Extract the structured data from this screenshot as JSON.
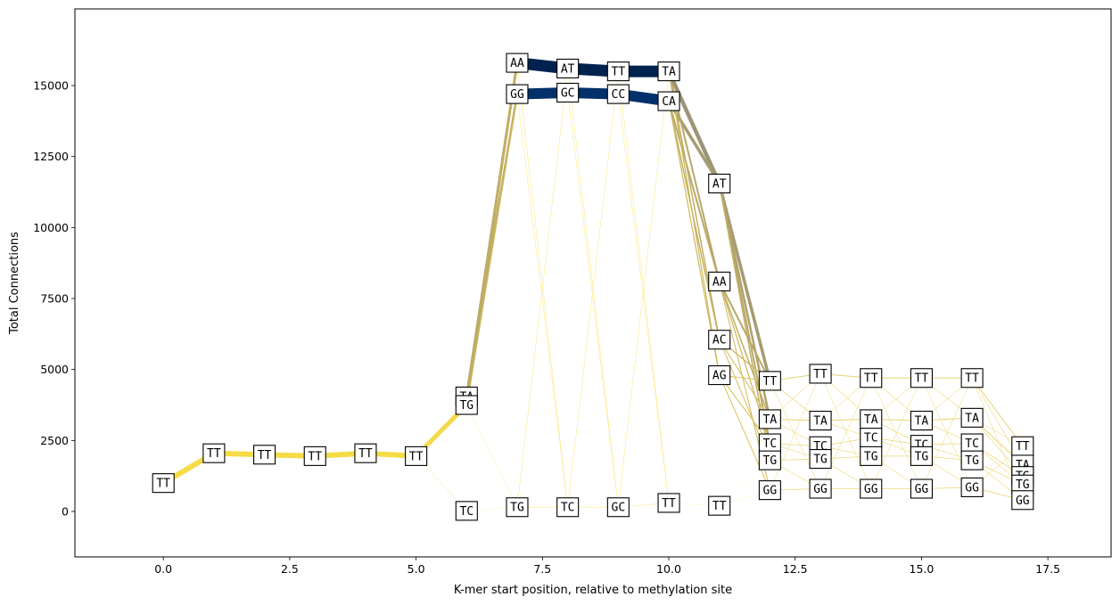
{
  "chart_data": {
    "type": "network-line",
    "xlabel": "K-mer start position, relative to methylation site",
    "ylabel": "Total Connections",
    "xlim": [
      -1.75,
      18.75
    ],
    "ylim": [
      -1600,
      17700
    ],
    "xticks": [
      {
        "value": 0.0,
        "label": "0.0"
      },
      {
        "value": 2.5,
        "label": "2.5"
      },
      {
        "value": 5.0,
        "label": "5.0"
      },
      {
        "value": 7.5,
        "label": "7.5"
      },
      {
        "value": 10.0,
        "label": "10.0"
      },
      {
        "value": 12.5,
        "label": "12.5"
      },
      {
        "value": 15.0,
        "label": "15.0"
      },
      {
        "value": 17.5,
        "label": "17.5"
      }
    ],
    "yticks": [
      {
        "value": 0,
        "label": "0"
      },
      {
        "value": 2500,
        "label": "2500"
      },
      {
        "value": 5000,
        "label": "5000"
      },
      {
        "value": 7500,
        "label": "7500"
      },
      {
        "value": 10000,
        "label": "10000"
      },
      {
        "value": 12500,
        "label": "12500"
      },
      {
        "value": 15000,
        "label": "15000"
      }
    ],
    "grid": false,
    "nodes": [
      {
        "id": "p0",
        "x": 0,
        "y": 1000,
        "label": "TT"
      },
      {
        "id": "p1",
        "x": 1,
        "y": 2050,
        "label": "TT"
      },
      {
        "id": "p2",
        "x": 2,
        "y": 2000,
        "label": "TT"
      },
      {
        "id": "p3",
        "x": 3,
        "y": 1950,
        "label": "TT"
      },
      {
        "id": "p4",
        "x": 4,
        "y": 2050,
        "label": "TT"
      },
      {
        "id": "p5",
        "x": 5,
        "y": 1950,
        "label": "TT"
      },
      {
        "id": "p6a",
        "x": 6,
        "y": 4050,
        "label": "TA"
      },
      {
        "id": "p6g",
        "x": 6,
        "y": 3750,
        "label": "TG"
      },
      {
        "id": "p6c",
        "x": 6,
        "y": 20,
        "label": "TC"
      },
      {
        "id": "p7a",
        "x": 7,
        "y": 15800,
        "label": "AA"
      },
      {
        "id": "p7g",
        "x": 7,
        "y": 14700,
        "label": "GG"
      },
      {
        "id": "p7t",
        "x": 7,
        "y": 150,
        "label": "TG"
      },
      {
        "id": "p8a",
        "x": 8,
        "y": 15600,
        "label": "AT"
      },
      {
        "id": "p8g",
        "x": 8,
        "y": 14750,
        "label": "GC"
      },
      {
        "id": "p8t",
        "x": 8,
        "y": 150,
        "label": "TC"
      },
      {
        "id": "p9a",
        "x": 9,
        "y": 15500,
        "label": "TT"
      },
      {
        "id": "p9g",
        "x": 9,
        "y": 14700,
        "label": "CC"
      },
      {
        "id": "p9t",
        "x": 9,
        "y": 150,
        "label": "GC"
      },
      {
        "id": "p10a",
        "x": 10,
        "y": 15500,
        "label": "TA"
      },
      {
        "id": "p10g",
        "x": 10,
        "y": 14450,
        "label": "CA"
      },
      {
        "id": "p10t",
        "x": 10,
        "y": 300,
        "label": "TT"
      },
      {
        "id": "p11a",
        "x": 11,
        "y": 11550,
        "label": "AT"
      },
      {
        "id": "p11b",
        "x": 11,
        "y": 8100,
        "label": "AA"
      },
      {
        "id": "p11c",
        "x": 11,
        "y": 6050,
        "label": "AC"
      },
      {
        "id": "p11d",
        "x": 11,
        "y": 4800,
        "label": "AG"
      },
      {
        "id": "p11t",
        "x": 11,
        "y": 200,
        "label": "TT"
      },
      {
        "id": "p12tt",
        "x": 12,
        "y": 4600,
        "label": "TT"
      },
      {
        "id": "p12ta",
        "x": 12,
        "y": 3250,
        "label": "TA"
      },
      {
        "id": "p12tc",
        "x": 12,
        "y": 2400,
        "label": "TC"
      },
      {
        "id": "p12tg",
        "x": 12,
        "y": 1800,
        "label": "TG"
      },
      {
        "id": "p12gg",
        "x": 12,
        "y": 750,
        "label": "GG"
      },
      {
        "id": "p13tt",
        "x": 13,
        "y": 4850,
        "label": "TT"
      },
      {
        "id": "p13ta",
        "x": 13,
        "y": 3200,
        "label": "TA"
      },
      {
        "id": "p13tc",
        "x": 13,
        "y": 2300,
        "label": "TC"
      },
      {
        "id": "p13tg",
        "x": 13,
        "y": 1850,
        "label": "TG"
      },
      {
        "id": "p13gg",
        "x": 13,
        "y": 800,
        "label": "GG"
      },
      {
        "id": "p14tt",
        "x": 14,
        "y": 4700,
        "label": "TT"
      },
      {
        "id": "p14ta",
        "x": 14,
        "y": 3250,
        "label": "TA"
      },
      {
        "id": "p14tc",
        "x": 14,
        "y": 2600,
        "label": "TC"
      },
      {
        "id": "p14tg",
        "x": 14,
        "y": 1950,
        "label": "TG"
      },
      {
        "id": "p14gg",
        "x": 14,
        "y": 800,
        "label": "GG"
      },
      {
        "id": "p15tt",
        "x": 15,
        "y": 4700,
        "label": "TT"
      },
      {
        "id": "p15ta",
        "x": 15,
        "y": 3200,
        "label": "TA"
      },
      {
        "id": "p15tc",
        "x": 15,
        "y": 2350,
        "label": "TC"
      },
      {
        "id": "p15tg",
        "x": 15,
        "y": 1950,
        "label": "TG"
      },
      {
        "id": "p15gg",
        "x": 15,
        "y": 800,
        "label": "GG"
      },
      {
        "id": "p16tt",
        "x": 16,
        "y": 4700,
        "label": "TT"
      },
      {
        "id": "p16ta",
        "x": 16,
        "y": 3300,
        "label": "TA"
      },
      {
        "id": "p16tc",
        "x": 16,
        "y": 2400,
        "label": "TC"
      },
      {
        "id": "p16tg",
        "x": 16,
        "y": 1800,
        "label": "TG"
      },
      {
        "id": "p16gg",
        "x": 16,
        "y": 850,
        "label": "GG"
      },
      {
        "id": "p17tt",
        "x": 17,
        "y": 2300,
        "label": "TT"
      },
      {
        "id": "p17ta",
        "x": 17,
        "y": 1650,
        "label": "TA"
      },
      {
        "id": "p17tc",
        "x": 17,
        "y": 1250,
        "label": "TG"
      },
      {
        "id": "p17tg",
        "x": 17,
        "y": 950,
        "label": "TG"
      },
      {
        "id": "p17gg",
        "x": 17,
        "y": 400,
        "label": "GG"
      }
    ],
    "edges": [
      {
        "from": "p0",
        "to": "p1",
        "weight": 6,
        "color": "#f5dc47"
      },
      {
        "from": "p1",
        "to": "p2",
        "weight": 6,
        "color": "#f5dc47"
      },
      {
        "from": "p2",
        "to": "p3",
        "weight": 6,
        "color": "#f5dc47"
      },
      {
        "from": "p3",
        "to": "p4",
        "weight": 6,
        "color": "#f5dc47"
      },
      {
        "from": "p4",
        "to": "p5",
        "weight": 6,
        "color": "#f5dc47"
      },
      {
        "from": "p5",
        "to": "p6g",
        "weight": 5,
        "color": "#f3d94c"
      },
      {
        "from": "p5",
        "to": "p6c",
        "weight": 0.6,
        "color": "#fdf3c0"
      },
      {
        "from": "p6a",
        "to": "p7a",
        "weight": 3,
        "color": "#b9a96a"
      },
      {
        "from": "p6g",
        "to": "p7a",
        "weight": 2.5,
        "color": "#c2af62"
      },
      {
        "from": "p6a",
        "to": "p7g",
        "weight": 2.5,
        "color": "#bcab66"
      },
      {
        "from": "p6g",
        "to": "p7g",
        "weight": 2,
        "color": "#c9b35d"
      },
      {
        "from": "p6g",
        "to": "p7t",
        "weight": 0.6,
        "color": "#fdf3c0"
      },
      {
        "from": "p6c",
        "to": "p7t",
        "weight": 0.6,
        "color": "#fdf3c0"
      },
      {
        "from": "p7a",
        "to": "p8a",
        "weight": 13,
        "color": "#00224e"
      },
      {
        "from": "p8a",
        "to": "p9a",
        "weight": 13,
        "color": "#00224e"
      },
      {
        "from": "p9a",
        "to": "p10a",
        "weight": 13,
        "color": "#00224e"
      },
      {
        "from": "p7g",
        "to": "p8g",
        "weight": 12,
        "color": "#01306a"
      },
      {
        "from": "p8g",
        "to": "p9g",
        "weight": 12,
        "color": "#01306a"
      },
      {
        "from": "p9g",
        "to": "p10g",
        "weight": 12,
        "color": "#01306a"
      },
      {
        "from": "p7a",
        "to": "p8t",
        "weight": 0.6,
        "color": "#fbe98d"
      },
      {
        "from": "p7g",
        "to": "p8t",
        "weight": 0.6,
        "color": "#fbe98d"
      },
      {
        "from": "p7t",
        "to": "p8a",
        "weight": 0.6,
        "color": "#fbe98d"
      },
      {
        "from": "p7t",
        "to": "p8t",
        "weight": 0.6,
        "color": "#fbe98d"
      },
      {
        "from": "p8a",
        "to": "p9t",
        "weight": 0.6,
        "color": "#fbe98d"
      },
      {
        "from": "p8g",
        "to": "p9t",
        "weight": 0.6,
        "color": "#fbe98d"
      },
      {
        "from": "p8t",
        "to": "p9a",
        "weight": 0.6,
        "color": "#fbe98d"
      },
      {
        "from": "p8t",
        "to": "p9t",
        "weight": 0.6,
        "color": "#fbe98d"
      },
      {
        "from": "p9a",
        "to": "p10t",
        "weight": 0.6,
        "color": "#fbe98d"
      },
      {
        "from": "p9g",
        "to": "p10t",
        "weight": 0.6,
        "color": "#fbe98d"
      },
      {
        "from": "p9t",
        "to": "p10a",
        "weight": 0.6,
        "color": "#fbe98d"
      },
      {
        "from": "p9t",
        "to": "p10t",
        "weight": 0.6,
        "color": "#fbe98d"
      },
      {
        "from": "p10a",
        "to": "p11a",
        "weight": 4.5,
        "color": "#9d9477"
      },
      {
        "from": "p10g",
        "to": "p11a",
        "weight": 3.5,
        "color": "#a79c72"
      },
      {
        "from": "p10a",
        "to": "p11b",
        "weight": 2,
        "color": "#b8a86a"
      },
      {
        "from": "p10g",
        "to": "p11b",
        "weight": 2,
        "color": "#baa969"
      },
      {
        "from": "p10a",
        "to": "p11c",
        "weight": 1.5,
        "color": "#c1af64"
      },
      {
        "from": "p10g",
        "to": "p11c",
        "weight": 1.5,
        "color": "#c4b161"
      },
      {
        "from": "p10a",
        "to": "p11d",
        "weight": 1.2,
        "color": "#cdb85d"
      },
      {
        "from": "p10g",
        "to": "p11d",
        "weight": 1.2,
        "color": "#cfb85c"
      },
      {
        "from": "p10t",
        "to": "p11t",
        "weight": 0.6,
        "color": "#fdf3c0"
      },
      {
        "from": "p11a",
        "to": "p12tt",
        "weight": 3.5,
        "color": "#a69b72"
      },
      {
        "from": "p11a",
        "to": "p12ta",
        "weight": 2.5,
        "color": "#b0a26d"
      },
      {
        "from": "p11a",
        "to": "p12tc",
        "weight": 2,
        "color": "#b8a869"
      },
      {
        "from": "p11a",
        "to": "p12tg",
        "weight": 1.5,
        "color": "#c0ad64"
      },
      {
        "from": "p11b",
        "to": "p12tt",
        "weight": 2,
        "color": "#b8a869"
      },
      {
        "from": "p11b",
        "to": "p12ta",
        "weight": 1.5,
        "color": "#c2af63"
      },
      {
        "from": "p11b",
        "to": "p12tc",
        "weight": 1.2,
        "color": "#c9b35d"
      },
      {
        "from": "p11b",
        "to": "p12gg",
        "weight": 1,
        "color": "#d2ba58"
      },
      {
        "from": "p11c",
        "to": "p12tt",
        "weight": 1.2,
        "color": "#cab45d"
      },
      {
        "from": "p11c",
        "to": "p12ta",
        "weight": 1,
        "color": "#d4bc56"
      },
      {
        "from": "p11c",
        "to": "p12tg",
        "weight": 1,
        "color": "#d6be55"
      },
      {
        "from": "p11d",
        "to": "p12tt",
        "weight": 1,
        "color": "#d6be55"
      },
      {
        "from": "p11d",
        "to": "p12tc",
        "weight": 1,
        "color": "#d8c054"
      },
      {
        "from": "p11d",
        "to": "p12gg",
        "weight": 1,
        "color": "#dac152"
      },
      {
        "from": "p11t",
        "to": "p12tg",
        "weight": 0.5,
        "color": "#fdf3c0"
      },
      {
        "from": "p11t",
        "to": "p12gg",
        "weight": 0.5,
        "color": "#fdf3c0"
      },
      {
        "from": "p12tt",
        "to": "p13tt",
        "weight": 1,
        "color": "#e8d36f"
      },
      {
        "from": "p12tt",
        "to": "p13ta",
        "weight": 0.8,
        "color": "#ecd87a"
      },
      {
        "from": "p12ta",
        "to": "p13ta",
        "weight": 1,
        "color": "#e8d36f"
      },
      {
        "from": "p12ta",
        "to": "p13tc",
        "weight": 0.7,
        "color": "#efdc84"
      },
      {
        "from": "p12tc",
        "to": "p13tc",
        "weight": 0.8,
        "color": "#ecd87a"
      },
      {
        "from": "p12tc",
        "to": "p13tg",
        "weight": 0.7,
        "color": "#efdc84"
      },
      {
        "from": "p12tg",
        "to": "p13tg",
        "weight": 0.8,
        "color": "#ecd87a"
      },
      {
        "from": "p12tg",
        "to": "p13gg",
        "weight": 0.7,
        "color": "#efdc84"
      },
      {
        "from": "p12gg",
        "to": "p13gg",
        "weight": 0.8,
        "color": "#ecd87a"
      },
      {
        "from": "p12gg",
        "to": "p13tt",
        "weight": 0.6,
        "color": "#f2e192"
      },
      {
        "from": "p12tt",
        "to": "p13gg",
        "weight": 0.6,
        "color": "#f2e192"
      },
      {
        "from": "p12ta",
        "to": "p13tt",
        "weight": 0.6,
        "color": "#f2e192"
      },
      {
        "from": "p13tt",
        "to": "p14tt",
        "weight": 1,
        "color": "#e8d36f"
      },
      {
        "from": "p13tt",
        "to": "p14ta",
        "weight": 0.7,
        "color": "#efdc84"
      },
      {
        "from": "p13ta",
        "to": "p14ta",
        "weight": 1,
        "color": "#e8d36f"
      },
      {
        "from": "p13ta",
        "to": "p14tc",
        "weight": 0.7,
        "color": "#efdc84"
      },
      {
        "from": "p13tc",
        "to": "p14tc",
        "weight": 0.8,
        "color": "#ecd87a"
      },
      {
        "from": "p13tc",
        "to": "p14tg",
        "weight": 0.7,
        "color": "#efdc84"
      },
      {
        "from": "p13tg",
        "to": "p14tg",
        "weight": 0.8,
        "color": "#ecd87a"
      },
      {
        "from": "p13tg",
        "to": "p14gg",
        "weight": 0.7,
        "color": "#efdc84"
      },
      {
        "from": "p13gg",
        "to": "p14gg",
        "weight": 0.8,
        "color": "#ecd87a"
      },
      {
        "from": "p13gg",
        "to": "p14tt",
        "weight": 0.6,
        "color": "#f2e192"
      },
      {
        "from": "p13tt",
        "to": "p14gg",
        "weight": 0.6,
        "color": "#f2e192"
      },
      {
        "from": "p13ta",
        "to": "p14tt",
        "weight": 0.6,
        "color": "#f2e192"
      },
      {
        "from": "p14tt",
        "to": "p15tt",
        "weight": 1,
        "color": "#e8d36f"
      },
      {
        "from": "p14tt",
        "to": "p15ta",
        "weight": 0.7,
        "color": "#efdc84"
      },
      {
        "from": "p14ta",
        "to": "p15ta",
        "weight": 1,
        "color": "#e8d36f"
      },
      {
        "from": "p14ta",
        "to": "p15tc",
        "weight": 0.7,
        "color": "#efdc84"
      },
      {
        "from": "p14tc",
        "to": "p15tc",
        "weight": 0.8,
        "color": "#ecd87a"
      },
      {
        "from": "p14tc",
        "to": "p15tg",
        "weight": 0.7,
        "color": "#efdc84"
      },
      {
        "from": "p14tg",
        "to": "p15tg",
        "weight": 0.8,
        "color": "#ecd87a"
      },
      {
        "from": "p14tg",
        "to": "p15gg",
        "weight": 0.7,
        "color": "#efdc84"
      },
      {
        "from": "p14gg",
        "to": "p15gg",
        "weight": 0.8,
        "color": "#ecd87a"
      },
      {
        "from": "p14gg",
        "to": "p15tt",
        "weight": 0.6,
        "color": "#f2e192"
      },
      {
        "from": "p14tt",
        "to": "p15gg",
        "weight": 0.6,
        "color": "#f2e192"
      },
      {
        "from": "p14ta",
        "to": "p15tt",
        "weight": 0.6,
        "color": "#f2e192"
      },
      {
        "from": "p15tt",
        "to": "p16tt",
        "weight": 1,
        "color": "#e8d36f"
      },
      {
        "from": "p15tt",
        "to": "p16ta",
        "weight": 0.7,
        "color": "#efdc84"
      },
      {
        "from": "p15ta",
        "to": "p16ta",
        "weight": 1,
        "color": "#e8d36f"
      },
      {
        "from": "p15ta",
        "to": "p16tc",
        "weight": 0.7,
        "color": "#efdc84"
      },
      {
        "from": "p15tc",
        "to": "p16tc",
        "weight": 0.8,
        "color": "#ecd87a"
      },
      {
        "from": "p15tc",
        "to": "p16tg",
        "weight": 0.7,
        "color": "#efdc84"
      },
      {
        "from": "p15tg",
        "to": "p16tg",
        "weight": 0.8,
        "color": "#ecd87a"
      },
      {
        "from": "p15tg",
        "to": "p16gg",
        "weight": 0.7,
        "color": "#efdc84"
      },
      {
        "from": "p15gg",
        "to": "p16gg",
        "weight": 0.8,
        "color": "#ecd87a"
      },
      {
        "from": "p15gg",
        "to": "p16tt",
        "weight": 0.6,
        "color": "#f2e192"
      },
      {
        "from": "p15tt",
        "to": "p16gg",
        "weight": 0.6,
        "color": "#f2e192"
      },
      {
        "from": "p15ta",
        "to": "p16tt",
        "weight": 0.6,
        "color": "#f2e192"
      },
      {
        "from": "p16tt",
        "to": "p17tt",
        "weight": 1,
        "color": "#e8d36f"
      },
      {
        "from": "p16tt",
        "to": "p17ta",
        "weight": 0.7,
        "color": "#efdc84"
      },
      {
        "from": "p16ta",
        "to": "p17ta",
        "weight": 1,
        "color": "#e8d36f"
      },
      {
        "from": "p16ta",
        "to": "p17tc",
        "weight": 0.7,
        "color": "#efdc84"
      },
      {
        "from": "p16tc",
        "to": "p17tc",
        "weight": 0.8,
        "color": "#ecd87a"
      },
      {
        "from": "p16tc",
        "to": "p17tg",
        "weight": 0.7,
        "color": "#efdc84"
      },
      {
        "from": "p16tg",
        "to": "p17tg",
        "weight": 0.8,
        "color": "#ecd87a"
      },
      {
        "from": "p16tg",
        "to": "p17gg",
        "weight": 0.7,
        "color": "#efdc84"
      },
      {
        "from": "p16gg",
        "to": "p17gg",
        "weight": 0.8,
        "color": "#ecd87a"
      },
      {
        "from": "p16gg",
        "to": "p17tt",
        "weight": 0.6,
        "color": "#f2e192"
      },
      {
        "from": "p16tt",
        "to": "p17gg",
        "weight": 0.6,
        "color": "#f2e192"
      },
      {
        "from": "p16ta",
        "to": "p17tt",
        "weight": 0.6,
        "color": "#f2e192"
      }
    ]
  }
}
